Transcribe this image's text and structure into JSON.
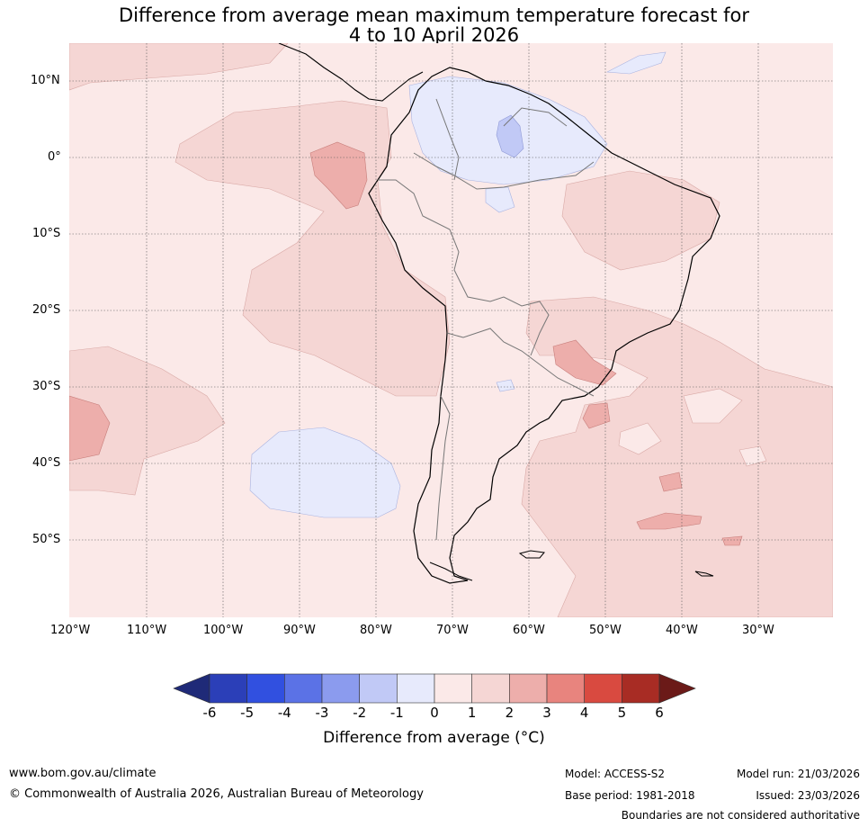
{
  "title": {
    "line1": "Difference from average mean maximum temperature forecast for",
    "line2": "4 to 10 April 2026"
  },
  "lat_labels": [
    "10°N",
    "0°",
    "10°S",
    "20°S",
    "30°S",
    "40°S",
    "50°S"
  ],
  "lon_labels": [
    "120°W",
    "110°W",
    "100°W",
    "90°W",
    "80°W",
    "70°W",
    "60°W",
    "50°W",
    "40°W",
    "30°W"
  ],
  "colorbar": {
    "ticks": [
      "-6",
      "-5",
      "-4",
      "-3",
      "-2",
      "-1",
      "0",
      "1",
      "2",
      "3",
      "4",
      "5",
      "6"
    ],
    "colors": [
      "#1f2a78",
      "#2b3fb8",
      "#3150e0",
      "#5b72e6",
      "#8b9bee",
      "#c1c9f6",
      "#e7eafc",
      "#fbe9e8",
      "#f5d6d4",
      "#edaeab",
      "#e8847e",
      "#d94a40",
      "#a82c24",
      "#6b1a18"
    ],
    "label": "Difference from average (°C)"
  },
  "footer": {
    "website": "www.bom.gov.au/climate",
    "copyright": "© Commonwealth of Australia 2026, Australian Bureau of Meteorology",
    "model": "Model: ACCESS-S2",
    "model_run": "Model run: 21/03/2026",
    "base_period": "Base period: 1981-2018",
    "issued": "Issued: 23/03/2026",
    "disclaimer": "Boundaries are not considered authoritative"
  }
}
